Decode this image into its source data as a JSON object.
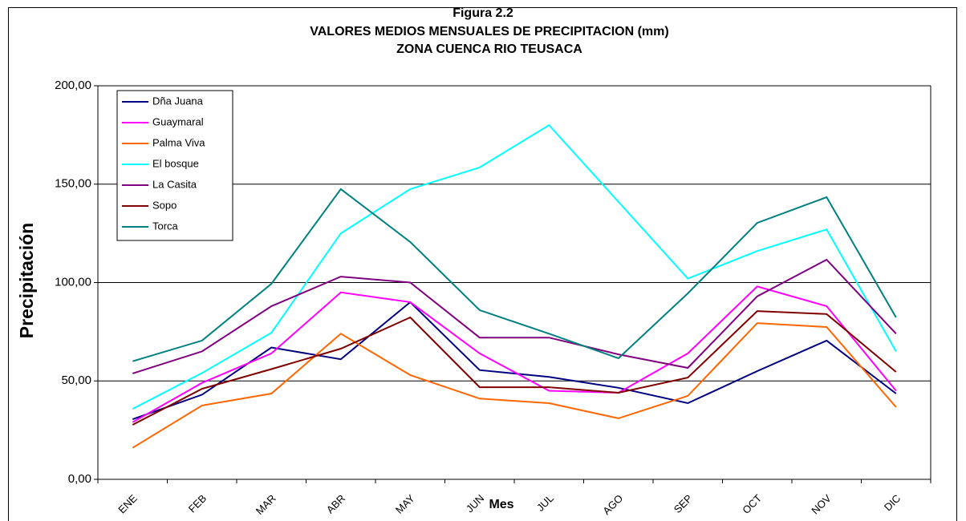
{
  "chart_data": {
    "type": "line",
    "title": "Figura  2.2",
    "subtitle": [
      "VALORES MEDIOS MENSUALES DE PRECIPITACION (mm)",
      "ZONA CUENCA RIO TEUSACA"
    ],
    "x_label": "Mes",
    "y_label": "Precipitación",
    "categories": [
      "ENE",
      "FEB",
      "MAR",
      "ABR",
      "MAY",
      "JUN",
      "JUL",
      "AGO",
      "SEP",
      "OCT",
      "NOV",
      "DIC"
    ],
    "ylim": [
      0,
      200
    ],
    "yticks": [
      {
        "value": 0,
        "label": "0,00"
      },
      {
        "value": 50,
        "label": "50,00"
      },
      {
        "value": 100,
        "label": "100,00"
      },
      {
        "value": 150,
        "label": "150,00"
      },
      {
        "value": 200,
        "label": "200,00"
      }
    ],
    "grid": true,
    "legend": "upper left",
    "series": [
      {
        "name": "Dña Juana",
        "color": "#000080",
        "values": [
          30.5,
          43,
          67,
          61,
          90,
          55.5,
          52,
          46.5,
          38.7,
          55,
          70.5,
          43.6
        ]
      },
      {
        "name": "Guaymaral",
        "color": "#ff00ff",
        "values": [
          29,
          49,
          64,
          95,
          90,
          64,
          45,
          44,
          64,
          98,
          88,
          45
        ]
      },
      {
        "name": "Palma Viva",
        "color": "#ff6600",
        "values": [
          16,
          37.5,
          43.6,
          74,
          53,
          41,
          38.7,
          31,
          42.4,
          79.4,
          77.4,
          36.7
        ]
      },
      {
        "name": "El bosque",
        "color": "#00ffff",
        "values": [
          35.8,
          54,
          74.5,
          125,
          147.5,
          158.5,
          180,
          141,
          102,
          116,
          127,
          65
        ]
      },
      {
        "name": "La Casita",
        "color": "#800080",
        "values": [
          53.8,
          65,
          88,
          103,
          100,
          72,
          72,
          63.5,
          56.6,
          93,
          111.6,
          74
        ]
      },
      {
        "name": "Sopo",
        "color": "#800000",
        "values": [
          27.7,
          46,
          56,
          66.4,
          82.3,
          46.8,
          46.8,
          44,
          51.7,
          85.5,
          84,
          54.6
        ]
      },
      {
        "name": "Torca",
        "color": "#008080",
        "values": [
          60,
          70.5,
          99.4,
          147.5,
          120.6,
          86,
          74,
          61.5,
          94.5,
          130.3,
          143.4,
          82.3
        ]
      }
    ]
  }
}
